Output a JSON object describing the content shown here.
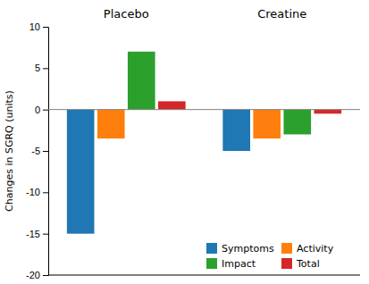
{
  "chart_data": {
    "type": "bar",
    "categories": [
      "Placebo",
      "Creatine"
    ],
    "series": [
      {
        "name": "Symptoms",
        "values": [
          -15.0,
          -5.0
        ]
      },
      {
        "name": "Activity",
        "values": [
          -3.5,
          -3.5
        ]
      },
      {
        "name": "Impact",
        "values": [
          7.0,
          -3.0
        ]
      },
      {
        "name": "Total",
        "values": [
          1.0,
          -0.5
        ]
      }
    ],
    "ylabel": "Changes in SGRQ (units)",
    "ylim": [
      -20,
      10
    ],
    "yticks": [
      -20,
      -15,
      -10,
      -5,
      0,
      5,
      10
    ],
    "legend": "lower right"
  }
}
